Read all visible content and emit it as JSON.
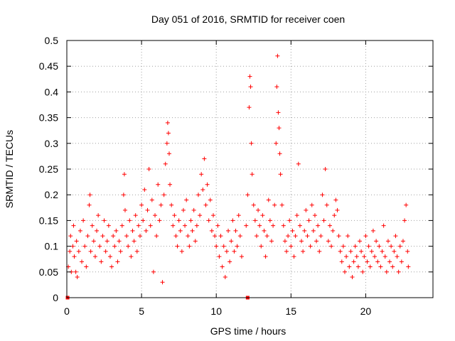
{
  "chart_data": {
    "type": "scatter",
    "title": "Day 051 of 2016, SRMTID for receiver coen",
    "xlabel": "GPS time / hours",
    "ylabel": "SRMTID / TECUs",
    "xlim": [
      0,
      24.5
    ],
    "ylim": [
      0,
      0.5
    ],
    "xticks": [
      0,
      5,
      10,
      15,
      20
    ],
    "xtick_labels": [
      "0",
      "5",
      "10",
      "15",
      "20"
    ],
    "yticks": [
      0,
      0.05,
      0.1,
      0.15,
      0.2,
      0.25,
      0.3,
      0.35,
      0.4,
      0.45,
      0.5
    ],
    "ytick_labels": [
      "0",
      "0.05",
      "0.1",
      "0.15",
      "0.2",
      "0.25",
      "0.3",
      "0.35",
      "0.4",
      "0.45",
      "0.5"
    ],
    "grid": true,
    "marker": "+",
    "color": "#ff0000",
    "zero_values": [
      {
        "x": 0.05,
        "y": 0
      },
      {
        "x": 12.1,
        "y": 0
      }
    ],
    "series": [
      {
        "name": "SRMTID",
        "points": [
          [
            0.1,
            0.06
          ],
          [
            0.2,
            0.09
          ],
          [
            0.25,
            0.12
          ],
          [
            0.3,
            0.05
          ],
          [
            0.4,
            0.1
          ],
          [
            0.45,
            0.14
          ],
          [
            0.5,
            0.08
          ],
          [
            0.6,
            0.05
          ],
          [
            0.65,
            0.11
          ],
          [
            0.7,
            0.04
          ],
          [
            0.8,
            0.09
          ],
          [
            0.9,
            0.13
          ],
          [
            1.0,
            0.07
          ],
          [
            1.1,
            0.15
          ],
          [
            1.2,
            0.1
          ],
          [
            1.3,
            0.06
          ],
          [
            1.4,
            0.12
          ],
          [
            1.5,
            0.18
          ],
          [
            1.55,
            0.2
          ],
          [
            1.6,
            0.09
          ],
          [
            1.7,
            0.14
          ],
          [
            1.8,
            0.11
          ],
          [
            1.9,
            0.08
          ],
          [
            2.0,
            0.13
          ],
          [
            2.1,
            0.16
          ],
          [
            2.2,
            0.1
          ],
          [
            2.3,
            0.07
          ],
          [
            2.4,
            0.12
          ],
          [
            2.5,
            0.15
          ],
          [
            2.6,
            0.09
          ],
          [
            2.7,
            0.11
          ],
          [
            2.8,
            0.14
          ],
          [
            2.9,
            0.08
          ],
          [
            3.0,
            0.06
          ],
          [
            3.1,
            0.12
          ],
          [
            3.2,
            0.1
          ],
          [
            3.3,
            0.13
          ],
          [
            3.4,
            0.07
          ],
          [
            3.5,
            0.11
          ],
          [
            3.6,
            0.09
          ],
          [
            3.7,
            0.14
          ],
          [
            3.8,
            0.2
          ],
          [
            3.85,
            0.24
          ],
          [
            3.9,
            0.17
          ],
          [
            4.0,
            0.12
          ],
          [
            4.1,
            0.1
          ],
          [
            4.2,
            0.15
          ],
          [
            4.3,
            0.08
          ],
          [
            4.4,
            0.13
          ],
          [
            4.5,
            0.11
          ],
          [
            4.6,
            0.16
          ],
          [
            4.7,
            0.09
          ],
          [
            4.8,
            0.14
          ],
          [
            4.9,
            0.12
          ],
          [
            5.0,
            0.18
          ],
          [
            5.1,
            0.15
          ],
          [
            5.2,
            0.21
          ],
          [
            5.3,
            0.13
          ],
          [
            5.4,
            0.17
          ],
          [
            5.5,
            0.25
          ],
          [
            5.6,
            0.14
          ],
          [
            5.7,
            0.19
          ],
          [
            5.8,
            0.05
          ],
          [
            5.9,
            0.16
          ],
          [
            6.0,
            0.12
          ],
          [
            6.1,
            0.22
          ],
          [
            6.2,
            0.15
          ],
          [
            6.3,
            0.18
          ],
          [
            6.4,
            0.03
          ],
          [
            6.5,
            0.2
          ],
          [
            6.6,
            0.26
          ],
          [
            6.7,
            0.3
          ],
          [
            6.75,
            0.34
          ],
          [
            6.8,
            0.32
          ],
          [
            6.85,
            0.28
          ],
          [
            6.9,
            0.22
          ],
          [
            7.0,
            0.18
          ],
          [
            7.1,
            0.14
          ],
          [
            7.2,
            0.16
          ],
          [
            7.3,
            0.12
          ],
          [
            7.4,
            0.1
          ],
          [
            7.5,
            0.15
          ],
          [
            7.6,
            0.13
          ],
          [
            7.7,
            0.09
          ],
          [
            7.8,
            0.17
          ],
          [
            7.9,
            0.14
          ],
          [
            8.0,
            0.19
          ],
          [
            8.1,
            0.12
          ],
          [
            8.2,
            0.1
          ],
          [
            8.3,
            0.15
          ],
          [
            8.4,
            0.13
          ],
          [
            8.5,
            0.17
          ],
          [
            8.6,
            0.11
          ],
          [
            8.7,
            0.14
          ],
          [
            8.8,
            0.2
          ],
          [
            8.9,
            0.16
          ],
          [
            9.0,
            0.24
          ],
          [
            9.1,
            0.21
          ],
          [
            9.2,
            0.27
          ],
          [
            9.3,
            0.18
          ],
          [
            9.4,
            0.22
          ],
          [
            9.5,
            0.15
          ],
          [
            9.6,
            0.19
          ],
          [
            9.7,
            0.13
          ],
          [
            9.8,
            0.16
          ],
          [
            9.9,
            0.12
          ],
          [
            10.0,
            0.1
          ],
          [
            10.1,
            0.14
          ],
          [
            10.2,
            0.08
          ],
          [
            10.3,
            0.12
          ],
          [
            10.4,
            0.06
          ],
          [
            10.5,
            0.1
          ],
          [
            10.6,
            0.04
          ],
          [
            10.7,
            0.09
          ],
          [
            10.8,
            0.13
          ],
          [
            10.9,
            0.07
          ],
          [
            11.0,
            0.11
          ],
          [
            11.1,
            0.15
          ],
          [
            11.2,
            0.09
          ],
          [
            11.3,
            0.13
          ],
          [
            11.4,
            0.1
          ],
          [
            11.5,
            0.16
          ],
          [
            11.6,
            0.12
          ],
          [
            11.7,
            0.08
          ],
          [
            12.0,
            0.14
          ],
          [
            12.1,
            0.2
          ],
          [
            12.2,
            0.37
          ],
          [
            12.25,
            0.43
          ],
          [
            12.3,
            0.41
          ],
          [
            12.35,
            0.3
          ],
          [
            12.4,
            0.24
          ],
          [
            12.5,
            0.18
          ],
          [
            12.6,
            0.15
          ],
          [
            12.7,
            0.12
          ],
          [
            12.8,
            0.17
          ],
          [
            12.9,
            0.14
          ],
          [
            13.0,
            0.1
          ],
          [
            13.1,
            0.16
          ],
          [
            13.2,
            0.13
          ],
          [
            13.3,
            0.08
          ],
          [
            13.4,
            0.12
          ],
          [
            13.5,
            0.19
          ],
          [
            13.6,
            0.15
          ],
          [
            13.7,
            0.11
          ],
          [
            13.8,
            0.14
          ],
          [
            13.9,
            0.18
          ],
          [
            14.0,
            0.3
          ],
          [
            14.05,
            0.41
          ],
          [
            14.1,
            0.47
          ],
          [
            14.15,
            0.36
          ],
          [
            14.2,
            0.33
          ],
          [
            14.25,
            0.28
          ],
          [
            14.3,
            0.24
          ],
          [
            14.4,
            0.18
          ],
          [
            14.5,
            0.14
          ],
          [
            14.6,
            0.11
          ],
          [
            14.7,
            0.09
          ],
          [
            14.8,
            0.12
          ],
          [
            14.9,
            0.15
          ],
          [
            15.0,
            0.1
          ],
          [
            15.1,
            0.13
          ],
          [
            15.2,
            0.08
          ],
          [
            15.3,
            0.12
          ],
          [
            15.4,
            0.16
          ],
          [
            15.5,
            0.26
          ],
          [
            15.6,
            0.14
          ],
          [
            15.7,
            0.11
          ],
          [
            15.8,
            0.09
          ],
          [
            15.9,
            0.13
          ],
          [
            16.0,
            0.17
          ],
          [
            16.1,
            0.12
          ],
          [
            16.2,
            0.15
          ],
          [
            16.3,
            0.1
          ],
          [
            16.4,
            0.18
          ],
          [
            16.5,
            0.13
          ],
          [
            16.6,
            0.16
          ],
          [
            16.7,
            0.11
          ],
          [
            16.8,
            0.14
          ],
          [
            16.9,
            0.09
          ],
          [
            17.0,
            0.12
          ],
          [
            17.1,
            0.2
          ],
          [
            17.2,
            0.15
          ],
          [
            17.3,
            0.25
          ],
          [
            17.4,
            0.18
          ],
          [
            17.5,
            0.11
          ],
          [
            17.6,
            0.14
          ],
          [
            17.7,
            0.1
          ],
          [
            17.8,
            0.13
          ],
          [
            17.9,
            0.16
          ],
          [
            18.0,
            0.19
          ],
          [
            18.1,
            0.17
          ],
          [
            18.2,
            0.12
          ],
          [
            18.3,
            0.09
          ],
          [
            18.4,
            0.07
          ],
          [
            18.5,
            0.1
          ],
          [
            18.6,
            0.05
          ],
          [
            18.7,
            0.08
          ],
          [
            18.8,
            0.12
          ],
          [
            18.9,
            0.06
          ],
          [
            19.0,
            0.09
          ],
          [
            19.1,
            0.04
          ],
          [
            19.2,
            0.07
          ],
          [
            19.3,
            0.1
          ],
          [
            19.4,
            0.08
          ],
          [
            19.5,
            0.06
          ],
          [
            19.6,
            0.11
          ],
          [
            19.7,
            0.09
          ],
          [
            19.8,
            0.05
          ],
          [
            19.9,
            0.08
          ],
          [
            20.0,
            0.12
          ],
          [
            20.1,
            0.07
          ],
          [
            20.2,
            0.1
          ],
          [
            20.3,
            0.06
          ],
          [
            20.4,
            0.09
          ],
          [
            20.5,
            0.13
          ],
          [
            20.6,
            0.08
          ],
          [
            20.7,
            0.11
          ],
          [
            20.8,
            0.07
          ],
          [
            20.9,
            0.1
          ],
          [
            21.0,
            0.06
          ],
          [
            21.1,
            0.09
          ],
          [
            21.2,
            0.14
          ],
          [
            21.3,
            0.08
          ],
          [
            21.4,
            0.05
          ],
          [
            21.5,
            0.11
          ],
          [
            21.6,
            0.07
          ],
          [
            21.7,
            0.1
          ],
          [
            21.8,
            0.06
          ],
          [
            21.9,
            0.09
          ],
          [
            22.0,
            0.12
          ],
          [
            22.1,
            0.08
          ],
          [
            22.2,
            0.05
          ],
          [
            22.3,
            0.1
          ],
          [
            22.4,
            0.07
          ],
          [
            22.5,
            0.11
          ],
          [
            22.6,
            0.15
          ],
          [
            22.7,
            0.18
          ],
          [
            22.8,
            0.09
          ],
          [
            22.85,
            0.06
          ]
        ]
      }
    ]
  }
}
